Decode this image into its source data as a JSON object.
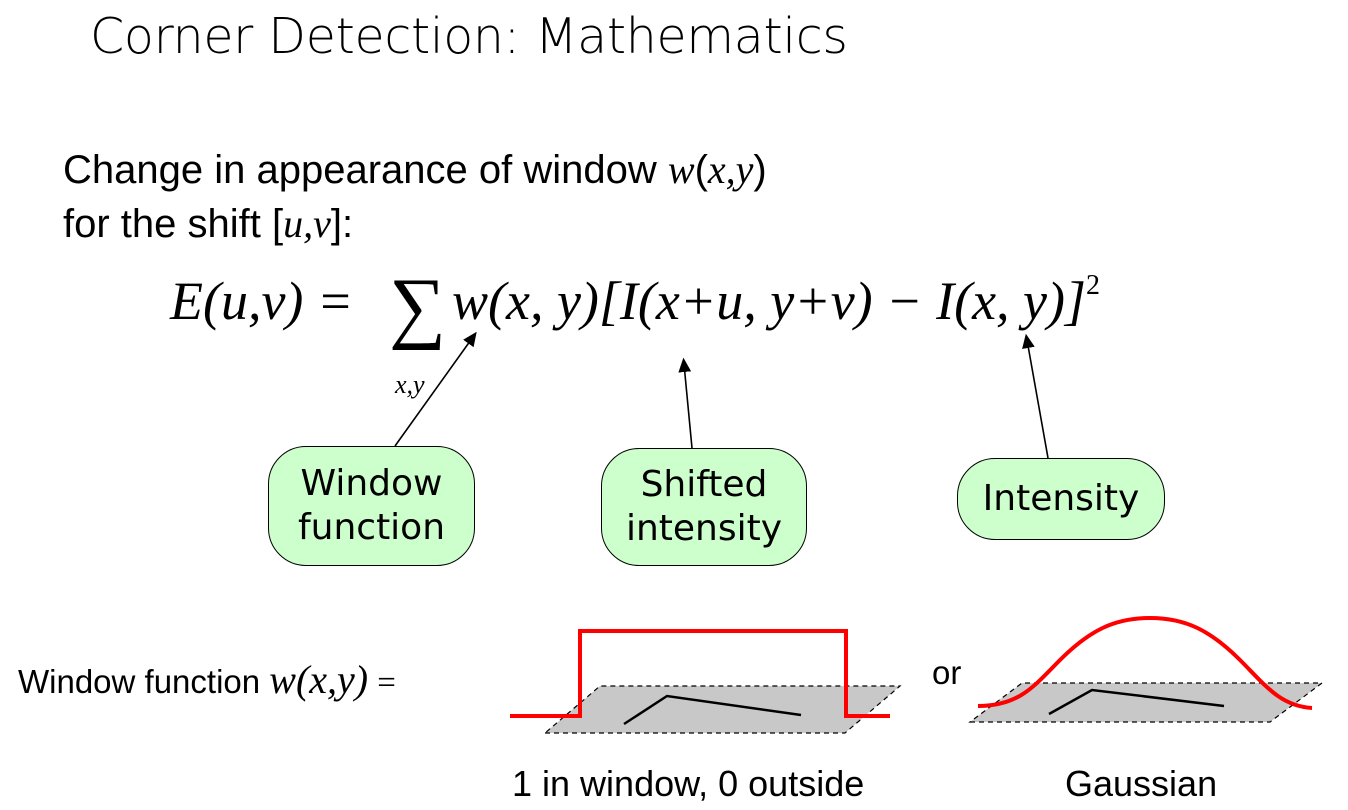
{
  "title": "Corner Detection: Mathematics",
  "intro": {
    "line1_prefix": "Change in appearance of window ",
    "line1_w": "w",
    "line1_args": "x,y",
    "line2_prefix": "for the shift [",
    "line2_uv": "u,v",
    "line2_suffix": "]:"
  },
  "equation": {
    "lhs": "E(u,v) =",
    "sum_subscript": "x,y",
    "body": "w(x, y)[I(x+u, y+v) − I(x, y)]",
    "exponent": "2"
  },
  "callouts": [
    {
      "line1": "Window",
      "line2": "function"
    },
    {
      "line1": "Shifted",
      "line2": "intensity"
    },
    {
      "line1": "Intensity",
      "line2": ""
    }
  ],
  "window_function": {
    "label": "Window function",
    "symbol": "w(x,y)",
    "equals": "=",
    "or_label": "or",
    "box_caption": "1 in window, 0 outside",
    "gaussian_caption": "Gaussian"
  },
  "colors": {
    "bubble_fill": "#ccffcc",
    "curve": "#ff0000",
    "plane": "#c8c8c8"
  }
}
